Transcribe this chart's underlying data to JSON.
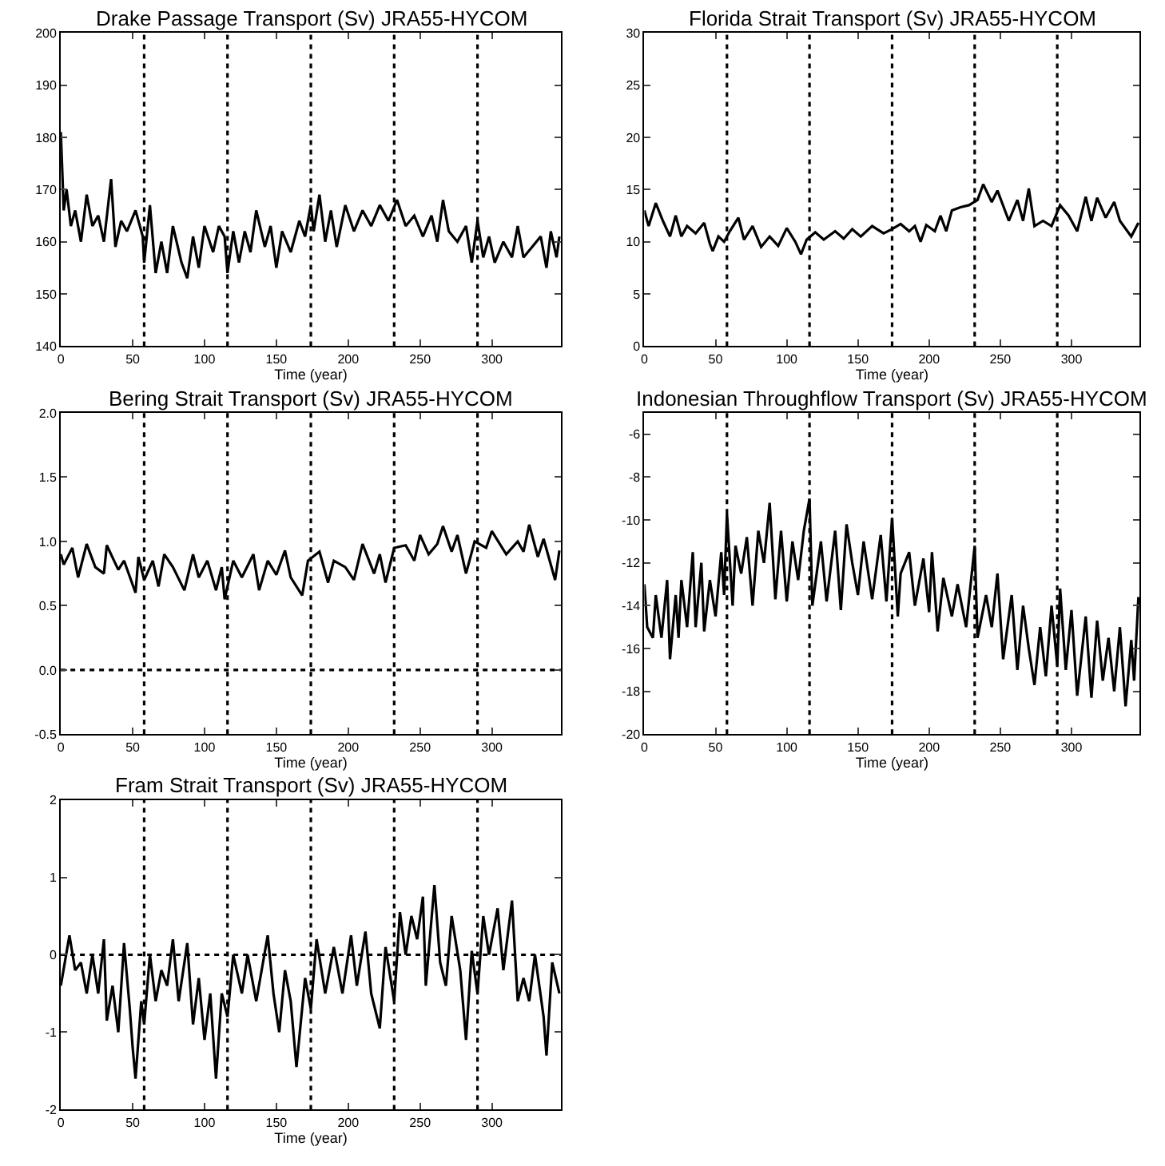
{
  "chart_data": [
    {
      "type": "line",
      "title": "Drake Passage Transport (Sv) JRA55-HYCOM",
      "xlabel": "Time (year)",
      "xlim": [
        0,
        348
      ],
      "xticks": [
        0,
        50,
        100,
        150,
        200,
        250,
        300
      ],
      "ylim": [
        140,
        200
      ],
      "yticks": [
        140,
        150,
        160,
        170,
        180,
        190,
        200
      ],
      "grid": false,
      "line_style": "solid",
      "marker": "none",
      "ref_lines": [
        {
          "axis": "x",
          "value": 58,
          "line_style": "dotted"
        },
        {
          "axis": "x",
          "value": 116,
          "line_style": "dotted"
        },
        {
          "axis": "x",
          "value": 174,
          "line_style": "dotted"
        },
        {
          "axis": "x",
          "value": 232,
          "line_style": "dotted"
        },
        {
          "axis": "x",
          "value": 290,
          "line_style": "dotted"
        }
      ],
      "series": [
        {
          "color": "#000000",
          "x": [
            0,
            2,
            4,
            7,
            10,
            14,
            18,
            22,
            26,
            30,
            35,
            38,
            42,
            46,
            52,
            57,
            58,
            62,
            66,
            70,
            74,
            78,
            84,
            88,
            92,
            96,
            100,
            106,
            110,
            114,
            116,
            120,
            124,
            128,
            132,
            136,
            142,
            146,
            150,
            154,
            160,
            166,
            170,
            174,
            176,
            180,
            184,
            188,
            192,
            198,
            204,
            210,
            216,
            222,
            228,
            234,
            240,
            246,
            252,
            258,
            262,
            266,
            270,
            276,
            282,
            286,
            290,
            294,
            298,
            302,
            308,
            314,
            318,
            322,
            328,
            334,
            338,
            341,
            345,
            347
          ],
          "values": [
            181,
            166,
            170,
            163,
            166,
            160,
            169,
            163,
            165,
            160,
            172,
            159,
            164,
            162,
            166,
            161,
            156,
            167,
            154,
            160,
            154,
            163,
            156,
            153,
            161,
            155,
            163,
            158,
            163,
            161,
            154,
            162,
            156,
            162,
            158,
            166,
            159,
            163,
            155,
            162,
            158,
            164,
            161,
            167,
            162,
            169,
            160,
            166,
            159,
            167,
            162,
            166,
            163,
            167,
            164,
            168,
            163,
            165,
            161,
            165,
            160,
            168,
            162,
            160,
            163,
            156,
            164,
            157,
            161,
            156,
            160,
            157,
            163,
            157,
            159,
            161,
            155,
            162,
            157,
            161
          ]
        }
      ]
    },
    {
      "type": "line",
      "title": "Florida Strait Transport (Sv) JRA55-HYCOM",
      "xlabel": "Time (year)",
      "xlim": [
        0,
        348
      ],
      "xticks": [
        0,
        50,
        100,
        150,
        200,
        250,
        300
      ],
      "ylim": [
        0,
        30
      ],
      "yticks": [
        0,
        5,
        10,
        15,
        20,
        25,
        30
      ],
      "grid": false,
      "line_style": "solid",
      "marker": "none",
      "ref_lines": [
        {
          "axis": "x",
          "value": 58,
          "line_style": "dotted"
        },
        {
          "axis": "x",
          "value": 116,
          "line_style": "dotted"
        },
        {
          "axis": "x",
          "value": 174,
          "line_style": "dotted"
        },
        {
          "axis": "x",
          "value": 232,
          "line_style": "dotted"
        },
        {
          "axis": "x",
          "value": 290,
          "line_style": "dotted"
        }
      ],
      "series": [
        {
          "color": "#000000",
          "x": [
            0,
            3,
            8,
            13,
            18,
            22,
            26,
            30,
            36,
            42,
            46,
            48,
            52,
            56,
            60,
            66,
            70,
            76,
            82,
            88,
            94,
            100,
            106,
            110,
            114,
            120,
            126,
            134,
            140,
            146,
            152,
            160,
            168,
            174,
            180,
            186,
            190,
            194,
            198,
            204,
            208,
            212,
            216,
            222,
            228,
            234,
            238,
            244,
            248,
            256,
            262,
            266,
            270,
            274,
            280,
            286,
            292,
            298,
            304,
            310,
            314,
            318,
            324,
            330,
            334,
            342,
            347
          ],
          "values": [
            13,
            11.5,
            13.7,
            12,
            10.5,
            12.5,
            10.5,
            11.5,
            10.8,
            11.8,
            9.8,
            9.1,
            10.5,
            10,
            11,
            12.3,
            10.2,
            11.5,
            9.5,
            10.5,
            9.6,
            11.3,
            10,
            8.8,
            10.2,
            10.9,
            10.2,
            11,
            10.3,
            11.2,
            10.5,
            11.5,
            10.8,
            11.2,
            11.7,
            11,
            11.5,
            10,
            11.6,
            11,
            12.5,
            11,
            13,
            13.3,
            13.5,
            14,
            15.5,
            13.8,
            14.9,
            12,
            14,
            12,
            15.1,
            11.5,
            12,
            11.5,
            13.5,
            12.5,
            11,
            14.3,
            12,
            14.2,
            12.3,
            13.8,
            12,
            10.5,
            11.8
          ]
        }
      ]
    },
    {
      "type": "line",
      "title": "Bering Strait Transport (Sv) JRA55-HYCOM",
      "xlabel": "Time (year)",
      "xlim": [
        0,
        348
      ],
      "xticks": [
        0,
        50,
        100,
        150,
        200,
        250,
        300
      ],
      "ylim": [
        -0.5,
        2
      ],
      "yticks": [
        {
          "value": -0.5,
          "label": "-0.5"
        },
        {
          "value": 0,
          "label": "0.0"
        },
        {
          "value": 0.5,
          "label": "0.5"
        },
        {
          "value": 1,
          "label": "1.0"
        },
        {
          "value": 1.5,
          "label": "1.5"
        },
        {
          "value": 2,
          "label": "2.0"
        }
      ],
      "grid": false,
      "line_style": "solid",
      "marker": "none",
      "ref_lines": [
        {
          "axis": "y",
          "value": 0,
          "line_style": "dotted"
        },
        {
          "axis": "x",
          "value": 58,
          "line_style": "dotted"
        },
        {
          "axis": "x",
          "value": 116,
          "line_style": "dotted"
        },
        {
          "axis": "x",
          "value": 174,
          "line_style": "dotted"
        },
        {
          "axis": "x",
          "value": 232,
          "line_style": "dotted"
        },
        {
          "axis": "x",
          "value": 290,
          "line_style": "dotted"
        }
      ],
      "series": [
        {
          "color": "#000000",
          "x": [
            0,
            2,
            8,
            12,
            18,
            24,
            30,
            32,
            40,
            44,
            52,
            54,
            58,
            64,
            68,
            72,
            78,
            86,
            92,
            96,
            102,
            108,
            112,
            114,
            120,
            126,
            134,
            138,
            144,
            150,
            156,
            160,
            168,
            172,
            180,
            186,
            190,
            198,
            204,
            210,
            218,
            222,
            226,
            232,
            240,
            246,
            250,
            256,
            262,
            266,
            272,
            276,
            282,
            288,
            296,
            300,
            310,
            318,
            322,
            326,
            332,
            336,
            344,
            347
          ],
          "values": [
            0.9,
            0.82,
            0.95,
            0.72,
            0.98,
            0.8,
            0.75,
            0.97,
            0.78,
            0.85,
            0.6,
            0.88,
            0.7,
            0.85,
            0.65,
            0.9,
            0.8,
            0.62,
            0.9,
            0.72,
            0.85,
            0.62,
            0.8,
            0.55,
            0.85,
            0.72,
            0.9,
            0.62,
            0.85,
            0.74,
            0.93,
            0.72,
            0.58,
            0.85,
            0.92,
            0.68,
            0.85,
            0.8,
            0.7,
            0.98,
            0.75,
            0.9,
            0.68,
            0.95,
            0.97,
            0.85,
            1.05,
            0.9,
            0.98,
            1.12,
            0.92,
            1.05,
            0.75,
            1.0,
            0.95,
            1.08,
            0.9,
            1.0,
            0.92,
            1.13,
            0.88,
            1.02,
            0.7,
            0.93
          ]
        }
      ]
    },
    {
      "type": "line",
      "title": "Indonesian Throughflow Transport (Sv) JRA55-HYCOM",
      "xlabel": "Time (year)",
      "xlim": [
        0,
        348
      ],
      "xticks": [
        0,
        50,
        100,
        150,
        200,
        250,
        300
      ],
      "ylim": [
        -20,
        -5
      ],
      "yticks": [
        -20,
        -18,
        -16,
        -14,
        -12,
        -10,
        -8,
        -6
      ],
      "grid": false,
      "line_style": "solid",
      "marker": "none",
      "ref_lines": [
        {
          "axis": "x",
          "value": 58,
          "line_style": "dotted"
        },
        {
          "axis": "x",
          "value": 116,
          "line_style": "dotted"
        },
        {
          "axis": "x",
          "value": 174,
          "line_style": "dotted"
        },
        {
          "axis": "x",
          "value": 232,
          "line_style": "dotted"
        },
        {
          "axis": "x",
          "value": 290,
          "line_style": "dotted"
        }
      ],
      "series": [
        {
          "color": "#000000",
          "x": [
            0,
            2,
            6,
            8,
            12,
            16,
            18,
            22,
            24,
            26,
            30,
            34,
            36,
            40,
            42,
            46,
            50,
            54,
            56,
            58,
            62,
            64,
            68,
            72,
            76,
            80,
            84,
            88,
            92,
            96,
            100,
            104,
            108,
            112,
            116,
            118,
            124,
            128,
            134,
            138,
            142,
            146,
            150,
            154,
            160,
            166,
            170,
            174,
            178,
            180,
            186,
            190,
            196,
            200,
            202,
            206,
            210,
            216,
            220,
            226,
            232,
            234,
            240,
            244,
            248,
            252,
            258,
            262,
            266,
            270,
            274,
            278,
            282,
            286,
            290,
            292,
            296,
            300,
            304,
            310,
            314,
            318,
            322,
            326,
            330,
            334,
            338,
            342,
            344,
            347
          ],
          "values": [
            -13,
            -15,
            -15.5,
            -13.5,
            -15.5,
            -12.8,
            -16.5,
            -13.5,
            -15.5,
            -12.8,
            -15,
            -11.5,
            -15,
            -12,
            -15.2,
            -12.8,
            -14.5,
            -11.5,
            -13.5,
            -9.7,
            -14,
            -11.2,
            -12.5,
            -10.8,
            -14,
            -10.5,
            -12,
            -9.2,
            -13.7,
            -10.5,
            -13.8,
            -11,
            -12.8,
            -10.5,
            -9,
            -14,
            -11,
            -13.8,
            -10.5,
            -14.2,
            -10.2,
            -12,
            -13.5,
            -11,
            -13.7,
            -10.7,
            -13.8,
            -9.9,
            -14.5,
            -12.5,
            -11.5,
            -14,
            -11.8,
            -14.3,
            -11.5,
            -15.2,
            -12.7,
            -14.5,
            -13,
            -15,
            -11.2,
            -15.5,
            -13.5,
            -15,
            -12.5,
            -16.5,
            -13.5,
            -17,
            -14,
            -16,
            -17.7,
            -15,
            -17.3,
            -14,
            -16.8,
            -13.2,
            -17,
            -14.2,
            -18.2,
            -14.5,
            -18.3,
            -14.7,
            -17.5,
            -15.5,
            -18,
            -15,
            -18.7,
            -15.6,
            -17.5,
            -13.6
          ]
        }
      ]
    },
    {
      "type": "line",
      "title": "Fram Strait Transport (Sv) JRA55-HYCOM",
      "xlabel": "Time (year)",
      "xlim": [
        0,
        348
      ],
      "xticks": [
        0,
        50,
        100,
        150,
        200,
        250,
        300
      ],
      "ylim": [
        -2,
        2
      ],
      "yticks": [
        -2,
        -1,
        0,
        1,
        2
      ],
      "grid": false,
      "line_style": "solid",
      "marker": "none",
      "ref_lines": [
        {
          "axis": "y",
          "value": 0,
          "line_style": "dotted"
        },
        {
          "axis": "x",
          "value": 58,
          "line_style": "dotted"
        },
        {
          "axis": "x",
          "value": 116,
          "line_style": "dotted"
        },
        {
          "axis": "x",
          "value": 174,
          "line_style": "dotted"
        },
        {
          "axis": "x",
          "value": 232,
          "line_style": "dotted"
        },
        {
          "axis": "x",
          "value": 290,
          "line_style": "dotted"
        }
      ],
      "series": [
        {
          "color": "#000000",
          "x": [
            0,
            6,
            10,
            14,
            18,
            22,
            26,
            30,
            32,
            36,
            40,
            44,
            48,
            50,
            52,
            56,
            58,
            62,
            66,
            70,
            74,
            78,
            82,
            88,
            92,
            96,
            100,
            104,
            108,
            112,
            116,
            120,
            126,
            130,
            136,
            144,
            148,
            152,
            156,
            160,
            164,
            170,
            174,
            178,
            184,
            190,
            196,
            202,
            206,
            212,
            216,
            222,
            226,
            232,
            236,
            240,
            244,
            248,
            252,
            254,
            260,
            264,
            268,
            272,
            278,
            282,
            286,
            290,
            294,
            298,
            304,
            308,
            314,
            318,
            322,
            326,
            330,
            336,
            338,
            342,
            347
          ],
          "values": [
            -0.4,
            0.25,
            -0.2,
            -0.1,
            -0.5,
            0,
            -0.5,
            0.2,
            -0.85,
            -0.4,
            -1.0,
            0.15,
            -0.7,
            -1.2,
            -1.6,
            -0.6,
            -0.9,
            0,
            -0.6,
            -0.2,
            -0.4,
            0.2,
            -0.6,
            0.15,
            -0.9,
            -0.3,
            -1.1,
            -0.5,
            -1.6,
            -0.5,
            -0.8,
            0,
            -0.5,
            0,
            -0.6,
            0.25,
            -0.5,
            -1.0,
            -0.2,
            -0.6,
            -1.45,
            -0.3,
            -0.7,
            0.2,
            -0.5,
            0.1,
            -0.5,
            0.25,
            -0.4,
            0.3,
            -0.5,
            -0.95,
            0.1,
            -0.6,
            0.55,
            0,
            0.5,
            0.2,
            0.75,
            -0.4,
            0.9,
            -0.1,
            -0.4,
            0.5,
            -0.2,
            -1.1,
            0.05,
            -0.5,
            0.5,
            0,
            0.6,
            -0.2,
            0.7,
            -0.6,
            -0.3,
            -0.6,
            0,
            -0.8,
            -1.3,
            -0.1,
            -0.5
          ]
        }
      ]
    }
  ]
}
